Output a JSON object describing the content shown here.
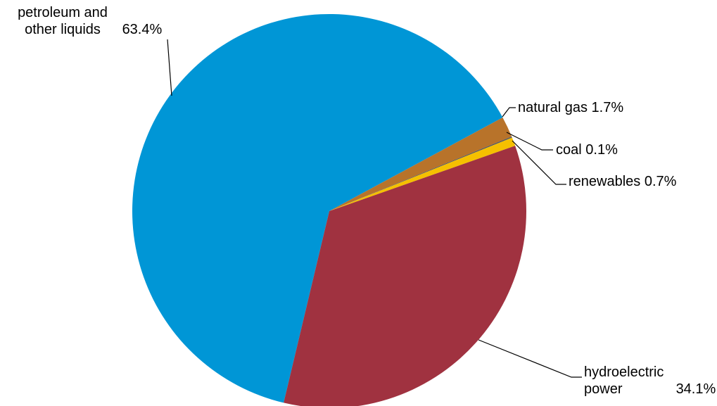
{
  "chart_data": {
    "type": "pie",
    "categories": [
      "petroleum and other liquids",
      "natural gas",
      "coal",
      "renewables",
      "hydroelectric power"
    ],
    "values": [
      63.4,
      1.7,
      0.1,
      0.7,
      34.1
    ],
    "value_labels": [
      "63.4%",
      "1.7%",
      "0.1%",
      "0.7%",
      "34.1%"
    ],
    "colors": [
      "#0096d6",
      "#b8732a",
      "#5a5a5a",
      "#f5c000",
      "#a03240"
    ]
  }
}
